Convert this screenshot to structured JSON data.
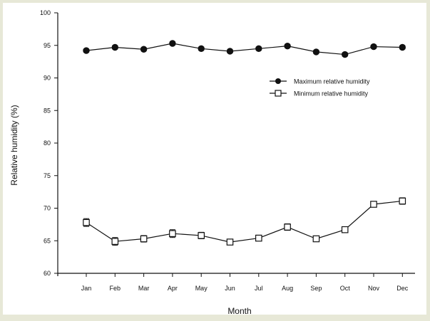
{
  "chart_data": {
    "type": "line",
    "title": "",
    "xlabel": "Month",
    "ylabel": "Relative humidity (%)",
    "categories": [
      "Jan",
      "Feb",
      "Mar",
      "Apr",
      "May",
      "Jun",
      "Jul",
      "Aug",
      "Sep",
      "Oct",
      "Nov",
      "Dec"
    ],
    "ylim": [
      60,
      100
    ],
    "yticks": [
      60,
      65,
      70,
      75,
      80,
      85,
      90,
      95,
      100
    ],
    "grid": false,
    "legend_position": "top-right",
    "series": [
      {
        "name": "Maximum relative humidity",
        "marker": "filled-circle",
        "values": [
          94.2,
          94.7,
          94.4,
          95.3,
          94.5,
          94.1,
          94.5,
          94.9,
          94.0,
          93.6,
          94.8,
          94.7
        ],
        "error": [
          0.25,
          0.25,
          0.25,
          0.25,
          0.25,
          0.25,
          0.25,
          0.25,
          0.25,
          0.25,
          0.25,
          0.25
        ]
      },
      {
        "name": "Minimum relative humidity",
        "marker": "open-square",
        "values": [
          67.8,
          64.9,
          65.3,
          66.1,
          65.8,
          64.8,
          65.4,
          67.1,
          65.3,
          66.7,
          70.6,
          71.1
        ],
        "error": [
          0.6,
          0.6,
          0.5,
          0.6,
          0.5,
          0.3,
          0.4,
          0.5,
          0.4,
          0.3,
          0.4,
          0.5
        ]
      }
    ],
    "colors": {
      "background": "#e7e8d7",
      "plot_area": "#ffffff",
      "line": "#111111"
    }
  }
}
